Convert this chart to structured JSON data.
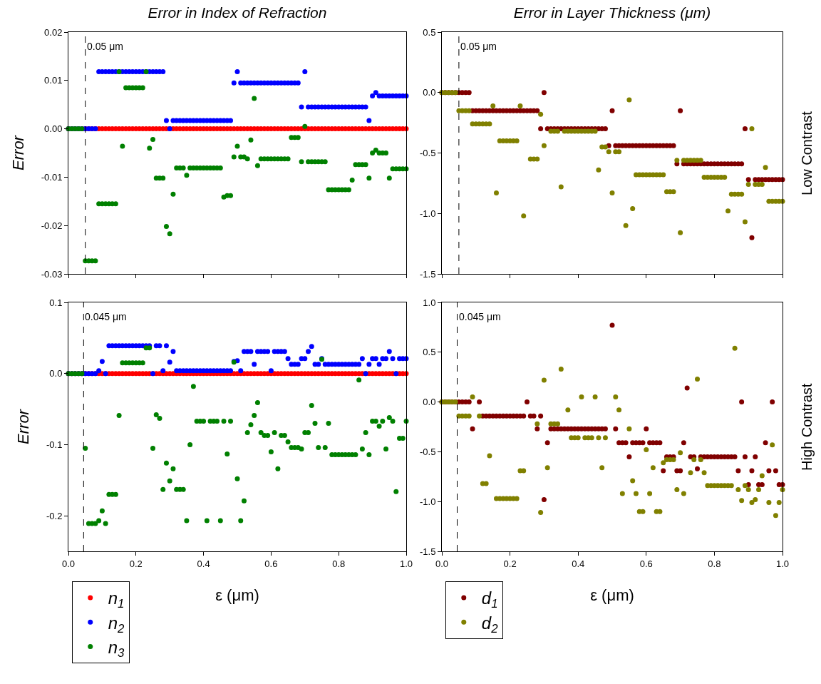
{
  "chart_data": [
    {
      "type": "scatter",
      "title": "Error in Index of Refraction",
      "ylabel": "Error",
      "marker": "circle",
      "grid": false,
      "legend": false,
      "tick_labels": "y",
      "xlim": [
        0,
        1
      ],
      "xticks": [
        {
          "value": 0,
          "label": null
        },
        {
          "value": 0.2,
          "label": null
        },
        {
          "value": 0.4,
          "label": null
        },
        {
          "value": 0.6,
          "label": null
        },
        {
          "value": 0.8,
          "label": null
        },
        {
          "value": 1,
          "label": null
        }
      ],
      "ylim": [
        -0.03,
        0.02
      ],
      "yticks": [
        -0.03,
        -0.02,
        -0.01,
        {
          "value": 0,
          "label": "0.00"
        },
        0.01,
        0.02
      ],
      "ref_lines": [
        {
          "axis": "x",
          "value": 0.05,
          "label": "0.05 μm",
          "color": "#000000",
          "line_style": "dashed"
        }
      ],
      "x": [
        0,
        0.01,
        0.02,
        0.03,
        0.04,
        0.05,
        0.06,
        0.07,
        0.08,
        0.09,
        0.1,
        0.11,
        0.12,
        0.13,
        0.14,
        0.15,
        0.16,
        0.17,
        0.18,
        0.19,
        0.2,
        0.21,
        0.22,
        0.23,
        0.24,
        0.25,
        0.26,
        0.27,
        0.28,
        0.29,
        0.3,
        0.31,
        0.32,
        0.33,
        0.34,
        0.35,
        0.36,
        0.37,
        0.38,
        0.39,
        0.4,
        0.41,
        0.42,
        0.43,
        0.44,
        0.45,
        0.46,
        0.47,
        0.48,
        0.49,
        0.5,
        0.51,
        0.52,
        0.53,
        0.54,
        0.55,
        0.56,
        0.57,
        0.58,
        0.59,
        0.6,
        0.61,
        0.62,
        0.63,
        0.64,
        0.65,
        0.66,
        0.67,
        0.68,
        0.69,
        0.7,
        0.71,
        0.72,
        0.73,
        0.74,
        0.75,
        0.76,
        0.77,
        0.78,
        0.79,
        0.8,
        0.81,
        0.82,
        0.83,
        0.84,
        0.85,
        0.86,
        0.87,
        0.88,
        0.89,
        0.9,
        0.91,
        0.92,
        0.93,
        0.94,
        0.95,
        0.96,
        0.97,
        0.98,
        0.99,
        1
      ],
      "series": [
        {
          "color": "#ff0000",
          "values": [
            0,
            0,
            0,
            0,
            0,
            0,
            0,
            0,
            0,
            0,
            0,
            0,
            0,
            0,
            0,
            0,
            0,
            0,
            0,
            0,
            0,
            0,
            0,
            0,
            0,
            0,
            0,
            0,
            0,
            0,
            0,
            0,
            0,
            0,
            0,
            0,
            0,
            0,
            0,
            0,
            0,
            0,
            0,
            0,
            0,
            0,
            0,
            0,
            0,
            0,
            0,
            0,
            0,
            0,
            0,
            0,
            0,
            0,
            0,
            0,
            0,
            0,
            0,
            0,
            0,
            0,
            0,
            0,
            0,
            0,
            0,
            0,
            0,
            0,
            0,
            0,
            0,
            0,
            0,
            0,
            0,
            0,
            0,
            0,
            0,
            0,
            0,
            0,
            0,
            0,
            0,
            0,
            0,
            0,
            0,
            0,
            0,
            0,
            0,
            0,
            0
          ]
        },
        {
          "color": "#0000ff",
          "values": [
            0,
            0,
            0,
            0,
            0,
            0,
            0,
            0,
            0,
            0.0118,
            0.0118,
            0.0118,
            0.0118,
            0.0118,
            0.0118,
            0.0118,
            0.0118,
            0.0118,
            0.0118,
            0.0118,
            0.0118,
            0.0118,
            0.0118,
            0.0118,
            0.0118,
            0.0118,
            0.0118,
            0.0118,
            0.0118,
            0.0017,
            0,
            0.0017,
            0.0017,
            0.0017,
            0.0017,
            0.0017,
            0.0017,
            0.0017,
            0.0017,
            0.0017,
            0.0017,
            0.0017,
            0.0017,
            0.0017,
            0.0017,
            0.0017,
            0.0017,
            0.0017,
            0.0017,
            0.0095,
            0.0118,
            0.0095,
            0.0095,
            0.0095,
            0.0095,
            0.0095,
            0.0095,
            0.0095,
            0.0095,
            0.0095,
            0.0095,
            0.0095,
            0.0095,
            0.0095,
            0.0095,
            0.0095,
            0.0095,
            0.0095,
            0.0095,
            0.0045,
            0.0118,
            0.0045,
            0.0045,
            0.0045,
            0.0045,
            0.0045,
            0.0045,
            0.0045,
            0.0045,
            0.0045,
            0.0045,
            0.0045,
            0.0045,
            0.0045,
            0.0045,
            0.0045,
            0.0045,
            0.0045,
            0.0045,
            0.0017,
            0.0068,
            0.0075,
            0.0068,
            0.0068,
            0.0068,
            0.0068,
            0.0068,
            0.0068,
            0.0068,
            0.0068,
            0.0068
          ]
        },
        {
          "color": "#008000",
          "values": [
            0,
            0,
            0,
            0,
            0,
            -0.0273,
            -0.0273,
            -0.0273,
            -0.0273,
            -0.0155,
            -0.0155,
            -0.0155,
            -0.0155,
            -0.0155,
            -0.0155,
            0.0118,
            -0.0036,
            0.0085,
            0.0085,
            0.0085,
            0.0085,
            0.0085,
            0.0085,
            0.0118,
            -0.004,
            -0.0022,
            -0.0102,
            -0.0102,
            -0.0102,
            -0.0202,
            -0.0217,
            -0.0135,
            -0.0081,
            -0.0081,
            -0.0081,
            -0.0096,
            -0.0081,
            -0.0081,
            -0.0081,
            -0.0081,
            -0.0081,
            -0.0081,
            -0.0081,
            -0.0081,
            -0.0081,
            -0.0081,
            -0.0141,
            -0.0138,
            -0.0138,
            -0.0058,
            -0.0036,
            -0.0058,
            -0.0058,
            -0.0062,
            -0.0023,
            0.0063,
            -0.0076,
            -0.0062,
            -0.0062,
            -0.0062,
            -0.0062,
            -0.0062,
            -0.0062,
            -0.0062,
            -0.0062,
            -0.0062,
            -0.0018,
            -0.0018,
            -0.0018,
            -0.0068,
            0.0005,
            -0.0068,
            -0.0068,
            -0.0068,
            -0.0068,
            -0.0068,
            -0.0068,
            -0.0126,
            -0.0126,
            -0.0126,
            -0.0126,
            -0.0126,
            -0.0126,
            -0.0126,
            -0.0106,
            -0.0074,
            -0.0074,
            -0.0074,
            -0.0074,
            -0.0102,
            -0.005,
            -0.0044,
            -0.005,
            -0.005,
            -0.005,
            -0.0102,
            -0.0083,
            -0.0083,
            -0.0083,
            -0.0083,
            -0.0083
          ]
        }
      ]
    },
    {
      "type": "scatter",
      "title": "Error in Layer Thickness (μm)",
      "marker": "circle",
      "grid": false,
      "legend": false,
      "tick_labels": "y",
      "annotations": [
        "Low Contrast"
      ],
      "xlim": [
        0,
        1
      ],
      "xticks": [
        {
          "value": 0,
          "label": null
        },
        {
          "value": 0.2,
          "label": null
        },
        {
          "value": 0.4,
          "label": null
        },
        {
          "value": 0.6,
          "label": null
        },
        {
          "value": 0.8,
          "label": null
        },
        {
          "value": 1,
          "label": null
        }
      ],
      "ylim": [
        -1.5,
        0.5
      ],
      "yticks": [
        -1.5,
        {
          "value": -1,
          "label": "-1.0"
        },
        -0.5,
        {
          "value": 0,
          "label": "0.0"
        },
        0.5
      ],
      "ref_lines": [
        {
          "axis": "x",
          "value": 0.05,
          "label": "0.05 μm",
          "color": "#000000",
          "line_style": "dashed"
        }
      ],
      "x": [
        0,
        0.01,
        0.02,
        0.03,
        0.04,
        0.05,
        0.06,
        0.07,
        0.08,
        0.09,
        0.1,
        0.11,
        0.12,
        0.13,
        0.14,
        0.15,
        0.16,
        0.17,
        0.18,
        0.19,
        0.2,
        0.21,
        0.22,
        0.23,
        0.24,
        0.25,
        0.26,
        0.27,
        0.28,
        0.29,
        0.3,
        0.31,
        0.32,
        0.33,
        0.34,
        0.35,
        0.36,
        0.37,
        0.38,
        0.39,
        0.4,
        0.41,
        0.42,
        0.43,
        0.44,
        0.45,
        0.46,
        0.47,
        0.48,
        0.49,
        0.5,
        0.51,
        0.52,
        0.53,
        0.54,
        0.55,
        0.56,
        0.57,
        0.58,
        0.59,
        0.6,
        0.61,
        0.62,
        0.63,
        0.64,
        0.65,
        0.66,
        0.67,
        0.68,
        0.69,
        0.7,
        0.71,
        0.72,
        0.73,
        0.74,
        0.75,
        0.76,
        0.77,
        0.78,
        0.79,
        0.8,
        0.81,
        0.82,
        0.83,
        0.84,
        0.85,
        0.86,
        0.87,
        0.88,
        0.89,
        0.9,
        0.91,
        0.92,
        0.93,
        0.94,
        0.95,
        0.96,
        0.97,
        0.98,
        0.99,
        1
      ],
      "series": [
        {
          "color": "#800000",
          "values": [
            0,
            0,
            0,
            0,
            0,
            0,
            0,
            0,
            0,
            -0.15,
            -0.15,
            -0.15,
            -0.15,
            -0.15,
            -0.15,
            -0.15,
            -0.15,
            -0.15,
            -0.15,
            -0.15,
            -0.15,
            -0.15,
            -0.15,
            -0.15,
            -0.15,
            -0.15,
            -0.15,
            -0.15,
            -0.15,
            -0.3,
            0,
            -0.3,
            -0.3,
            -0.3,
            -0.3,
            -0.3,
            -0.3,
            -0.3,
            -0.3,
            -0.3,
            -0.3,
            -0.3,
            -0.3,
            -0.3,
            -0.3,
            -0.3,
            -0.3,
            -0.3,
            -0.3,
            -0.44,
            -0.15,
            -0.44,
            -0.44,
            -0.44,
            -0.44,
            -0.44,
            -0.44,
            -0.44,
            -0.44,
            -0.44,
            -0.44,
            -0.44,
            -0.44,
            -0.44,
            -0.44,
            -0.44,
            -0.44,
            -0.44,
            -0.44,
            -0.59,
            -0.15,
            -0.59,
            -0.59,
            -0.59,
            -0.59,
            -0.59,
            -0.59,
            -0.59,
            -0.59,
            -0.59,
            -0.59,
            -0.59,
            -0.59,
            -0.59,
            -0.59,
            -0.59,
            -0.59,
            -0.59,
            -0.59,
            -0.3,
            -0.72,
            -1.2,
            -0.72,
            -0.72,
            -0.72,
            -0.72,
            -0.72,
            -0.72,
            -0.72,
            -0.72,
            -0.72
          ]
        },
        {
          "color": "#808000",
          "values": [
            0,
            0,
            0,
            0,
            0,
            -0.15,
            -0.15,
            -0.15,
            -0.15,
            -0.26,
            -0.26,
            -0.26,
            -0.26,
            -0.26,
            -0.26,
            -0.11,
            -0.83,
            -0.4,
            -0.4,
            -0.4,
            -0.4,
            -0.4,
            -0.4,
            -0.11,
            -1.02,
            null,
            -0.55,
            -0.55,
            -0.55,
            -0.18,
            -0.44,
            null,
            -0.32,
            -0.32,
            -0.32,
            -0.78,
            -0.32,
            -0.32,
            -0.32,
            -0.32,
            -0.32,
            -0.32,
            -0.32,
            -0.32,
            -0.32,
            -0.32,
            -0.64,
            -0.45,
            -0.45,
            -0.49,
            -0.83,
            -0.49,
            -0.49,
            null,
            -1.1,
            -0.06,
            -0.96,
            -0.68,
            -0.68,
            -0.68,
            -0.68,
            -0.68,
            -0.68,
            -0.68,
            -0.68,
            -0.68,
            -0.82,
            -0.82,
            -0.82,
            -0.56,
            -1.16,
            -0.56,
            -0.56,
            -0.56,
            -0.56,
            -0.56,
            -0.56,
            -0.7,
            -0.7,
            -0.7,
            -0.7,
            -0.7,
            -0.7,
            -0.7,
            -0.98,
            -0.84,
            -0.84,
            -0.84,
            -0.84,
            -1.07,
            -0.76,
            -0.3,
            -0.76,
            -0.76,
            -0.76,
            -0.62,
            -0.9,
            -0.9,
            -0.9,
            -0.9,
            -0.9
          ]
        }
      ]
    },
    {
      "type": "scatter",
      "xlabel": "ε (μm)",
      "ylabel": "Error",
      "marker": "circle",
      "grid": false,
      "legend": "bottom left",
      "xlim": [
        0,
        1
      ],
      "xticks": [
        {
          "value": 0,
          "label": "0.0"
        },
        {
          "value": 0.2,
          "label": "0.2"
        },
        {
          "value": 0.4,
          "label": "0.4"
        },
        {
          "value": 0.6,
          "label": "0.6"
        },
        {
          "value": 0.8,
          "label": "0.8"
        },
        {
          "value": 1,
          "label": "1.0"
        }
      ],
      "ylim": [
        -0.25,
        0.1
      ],
      "yticks": [
        -0.2,
        -0.1,
        {
          "value": 0,
          "label": "0.0"
        },
        0.1
      ],
      "ref_lines": [
        {
          "axis": "x",
          "value": 0.045,
          "label": "0.045 μm",
          "color": "#000000",
          "line_style": "dashed"
        }
      ],
      "x": [
        0,
        0.01,
        0.02,
        0.03,
        0.04,
        0.05,
        0.06,
        0.07,
        0.08,
        0.09,
        0.1,
        0.11,
        0.12,
        0.13,
        0.14,
        0.15,
        0.16,
        0.17,
        0.18,
        0.19,
        0.2,
        0.21,
        0.22,
        0.23,
        0.24,
        0.25,
        0.26,
        0.27,
        0.28,
        0.29,
        0.3,
        0.31,
        0.32,
        0.33,
        0.34,
        0.35,
        0.36,
        0.37,
        0.38,
        0.39,
        0.4,
        0.41,
        0.42,
        0.43,
        0.44,
        0.45,
        0.46,
        0.47,
        0.48,
        0.49,
        0.5,
        0.51,
        0.52,
        0.53,
        0.54,
        0.55,
        0.56,
        0.57,
        0.58,
        0.59,
        0.6,
        0.61,
        0.62,
        0.63,
        0.64,
        0.65,
        0.66,
        0.67,
        0.68,
        0.69,
        0.7,
        0.71,
        0.72,
        0.73,
        0.74,
        0.75,
        0.76,
        0.77,
        0.78,
        0.79,
        0.8,
        0.81,
        0.82,
        0.83,
        0.84,
        0.85,
        0.86,
        0.87,
        0.88,
        0.89,
        0.9,
        0.91,
        0.92,
        0.93,
        0.94,
        0.95,
        0.96,
        0.97,
        0.98,
        0.99,
        1
      ],
      "series": [
        {
          "name": "n$_{1}$",
          "color": "#ff0000",
          "values": [
            0,
            0,
            0,
            0,
            0,
            0,
            0,
            0,
            0,
            0,
            0,
            0,
            0,
            0,
            0,
            0,
            0,
            0,
            0,
            0,
            0,
            0,
            0,
            0,
            0,
            0,
            0,
            0,
            0,
            0,
            0,
            0,
            0,
            0,
            0,
            0,
            0,
            0,
            0,
            0,
            0,
            0,
            0,
            0,
            0,
            0,
            0,
            0,
            0,
            0,
            0,
            0,
            0,
            0,
            0,
            0,
            0,
            0,
            0,
            0,
            0,
            0,
            0,
            0,
            0,
            0,
            0,
            0,
            0,
            0,
            0,
            0,
            0,
            0,
            0,
            0,
            0,
            0,
            0,
            0,
            0,
            0,
            0,
            0,
            0,
            0,
            0,
            0,
            0,
            0,
            0,
            0,
            0,
            0,
            0,
            0,
            0,
            0,
            0,
            0,
            0
          ]
        },
        {
          "name": "n$_{2}$",
          "color": "#0000ff",
          "values": [
            0,
            0,
            0,
            0,
            0,
            0,
            0,
            0,
            0,
            0.004,
            0.017,
            0,
            0.039,
            0.039,
            0.039,
            0.039,
            0.039,
            0.039,
            0.039,
            0.039,
            0.039,
            0.039,
            0.039,
            0.039,
            0.039,
            0,
            0.039,
            0.039,
            0.004,
            0.039,
            0.016,
            0.031,
            0.004,
            0.004,
            0.004,
            0.004,
            0.004,
            0.004,
            0.004,
            0.004,
            0.004,
            0.004,
            0.004,
            0.004,
            0.004,
            0.004,
            0.004,
            0.004,
            0.004,
            0.017,
            0.018,
            0.004,
            0.031,
            0.031,
            0.031,
            0.013,
            0.031,
            0.031,
            0.031,
            0.031,
            0.004,
            0.031,
            0.031,
            0.031,
            0.031,
            0.021,
            0.013,
            0.013,
            0.013,
            0.021,
            0.021,
            0.031,
            0.038,
            0.013,
            0.013,
            0.021,
            0.013,
            0.013,
            0.013,
            0.013,
            0.013,
            0.013,
            0.013,
            0.013,
            0.013,
            0.013,
            0.013,
            0.021,
            0,
            0.013,
            0.021,
            0.021,
            0.013,
            0.021,
            0.021,
            0.031,
            0.021,
            0,
            0.021,
            0.021,
            0.021
          ]
        },
        {
          "name": "n$_{3}$",
          "color": "#008000",
          "values": [
            0,
            0,
            0,
            0,
            0,
            -0.105,
            -0.211,
            -0.211,
            -0.211,
            -0.207,
            -0.193,
            -0.211,
            -0.17,
            -0.17,
            -0.17,
            -0.059,
            0.015,
            0.015,
            0.015,
            0.015,
            0.015,
            0.015,
            0.015,
            0.036,
            0.036,
            -0.105,
            -0.058,
            -0.063,
            -0.163,
            -0.126,
            -0.151,
            -0.134,
            -0.163,
            -0.163,
            -0.163,
            -0.207,
            -0.1,
            -0.018,
            -0.067,
            -0.067,
            -0.067,
            -0.207,
            -0.067,
            -0.067,
            -0.067,
            -0.207,
            -0.067,
            -0.113,
            -0.067,
            0.016,
            -0.148,
            -0.207,
            -0.179,
            -0.083,
            -0.072,
            -0.059,
            -0.041,
            -0.083,
            -0.087,
            -0.087,
            -0.11,
            -0.083,
            -0.134,
            -0.087,
            -0.087,
            -0.096,
            -0.104,
            -0.104,
            -0.104,
            -0.106,
            -0.083,
            -0.083,
            -0.045,
            -0.07,
            -0.104,
            0.02,
            -0.104,
            -0.07,
            -0.114,
            -0.114,
            -0.114,
            -0.114,
            -0.114,
            -0.114,
            -0.114,
            -0.114,
            -0.009,
            -0.106,
            -0.083,
            -0.114,
            -0.067,
            -0.067,
            -0.074,
            -0.067,
            -0.106,
            -0.062,
            -0.067,
            -0.166,
            -0.091,
            -0.091,
            -0.067
          ]
        }
      ]
    },
    {
      "type": "scatter",
      "xlabel": "ε (μm)",
      "marker": "circle",
      "grid": false,
      "legend": "bottom left",
      "annotations": [
        "High Contrast"
      ],
      "xlim": [
        0,
        1
      ],
      "xticks": [
        {
          "value": 0,
          "label": "0.0"
        },
        {
          "value": 0.2,
          "label": "0.2"
        },
        {
          "value": 0.4,
          "label": "0.4"
        },
        {
          "value": 0.6,
          "label": "0.6"
        },
        {
          "value": 0.8,
          "label": "0.8"
        },
        {
          "value": 1,
          "label": "1.0"
        }
      ],
      "ylim": [
        -1.5,
        1
      ],
      "yticks": [
        -1.5,
        {
          "value": -1,
          "label": "-1.0"
        },
        -0.5,
        {
          "value": 0,
          "label": "0.0"
        },
        0.5,
        {
          "value": 1,
          "label": "1.0"
        }
      ],
      "ref_lines": [
        {
          "axis": "x",
          "value": 0.045,
          "label": "0.045 μm",
          "color": "#000000",
          "line_style": "dashed"
        }
      ],
      "x": [
        0,
        0.01,
        0.02,
        0.03,
        0.04,
        0.05,
        0.06,
        0.07,
        0.08,
        0.09,
        0.1,
        0.11,
        0.12,
        0.13,
        0.14,
        0.15,
        0.16,
        0.17,
        0.18,
        0.19,
        0.2,
        0.21,
        0.22,
        0.23,
        0.24,
        0.25,
        0.26,
        0.27,
        0.28,
        0.29,
        0.3,
        0.31,
        0.32,
        0.33,
        0.34,
        0.35,
        0.36,
        0.37,
        0.38,
        0.39,
        0.4,
        0.41,
        0.42,
        0.43,
        0.44,
        0.45,
        0.46,
        0.47,
        0.48,
        0.49,
        0.5,
        0.51,
        0.52,
        0.53,
        0.54,
        0.55,
        0.56,
        0.57,
        0.58,
        0.59,
        0.6,
        0.61,
        0.62,
        0.63,
        0.64,
        0.65,
        0.66,
        0.67,
        0.68,
        0.69,
        0.7,
        0.71,
        0.72,
        0.73,
        0.74,
        0.75,
        0.76,
        0.77,
        0.78,
        0.79,
        0.8,
        0.81,
        0.82,
        0.83,
        0.84,
        0.85,
        0.86,
        0.87,
        0.88,
        0.89,
        0.9,
        0.91,
        0.92,
        0.93,
        0.94,
        0.95,
        0.96,
        0.97,
        0.98,
        0.99,
        1
      ],
      "series": [
        {
          "name": "d$_{1}$",
          "color": "#800000",
          "values": [
            0,
            0,
            0,
            0,
            0,
            0,
            0,
            0,
            0,
            -0.27,
            null,
            0,
            -0.14,
            -0.14,
            -0.14,
            -0.14,
            -0.14,
            -0.14,
            -0.14,
            -0.14,
            -0.14,
            -0.14,
            -0.14,
            -0.14,
            -0.14,
            0,
            -0.14,
            -0.14,
            -0.27,
            -0.14,
            -0.98,
            -0.41,
            -0.27,
            -0.27,
            -0.27,
            -0.27,
            -0.27,
            -0.27,
            -0.27,
            -0.27,
            -0.27,
            -0.27,
            -0.27,
            -0.27,
            -0.27,
            -0.27,
            -0.27,
            -0.27,
            -0.27,
            null,
            0.77,
            -0.27,
            -0.41,
            -0.41,
            -0.41,
            -0.55,
            -0.41,
            -0.41,
            -0.41,
            -0.41,
            -0.27,
            -0.41,
            -0.41,
            -0.41,
            -0.41,
            -0.69,
            -0.55,
            -0.55,
            -0.55,
            -0.69,
            -0.69,
            -0.41,
            0.14,
            -0.55,
            -0.55,
            -0.67,
            -0.55,
            -0.55,
            -0.55,
            -0.55,
            -0.55,
            -0.55,
            -0.55,
            -0.55,
            -0.55,
            -0.55,
            -0.55,
            -0.69,
            0,
            -0.55,
            -0.83,
            -0.69,
            -0.55,
            -0.83,
            -0.83,
            -0.41,
            -0.69,
            0,
            -0.69,
            -0.83,
            -0.83
          ]
        },
        {
          "name": "d$_{2}$",
          "color": "#808000",
          "values": [
            0,
            0,
            0,
            0,
            0,
            -0.14,
            -0.14,
            -0.14,
            -0.14,
            0.05,
            null,
            -0.14,
            -0.82,
            -0.82,
            -0.54,
            null,
            -0.97,
            -0.97,
            -0.97,
            -0.97,
            -0.97,
            -0.97,
            -0.97,
            -0.69,
            -0.69,
            null,
            null,
            null,
            -0.22,
            -1.11,
            0.22,
            -0.66,
            -0.22,
            -0.22,
            -0.22,
            0.33,
            null,
            -0.08,
            -0.36,
            -0.36,
            -0.36,
            0.05,
            -0.36,
            -0.36,
            -0.36,
            0.05,
            -0.36,
            -0.66,
            -0.36,
            null,
            null,
            0.05,
            -0.08,
            -0.92,
            null,
            -0.27,
            -0.79,
            -0.92,
            -1.1,
            -1.1,
            -0.48,
            -0.92,
            -0.66,
            -1.1,
            -1.1,
            -0.61,
            -0.58,
            -0.58,
            -0.58,
            -0.88,
            -0.51,
            -0.92,
            null,
            -0.71,
            -0.58,
            0.23,
            -0.58,
            -0.71,
            -0.84,
            -0.84,
            -0.84,
            -0.84,
            -0.84,
            -0.84,
            -0.84,
            -0.84,
            0.54,
            -0.88,
            -0.99,
            -0.84,
            -0.88,
            -1.01,
            -0.98,
            -0.88,
            -0.74,
            null,
            -1.01,
            -0.43,
            -1.14,
            -1.01,
            -0.88
          ]
        }
      ]
    }
  ]
}
